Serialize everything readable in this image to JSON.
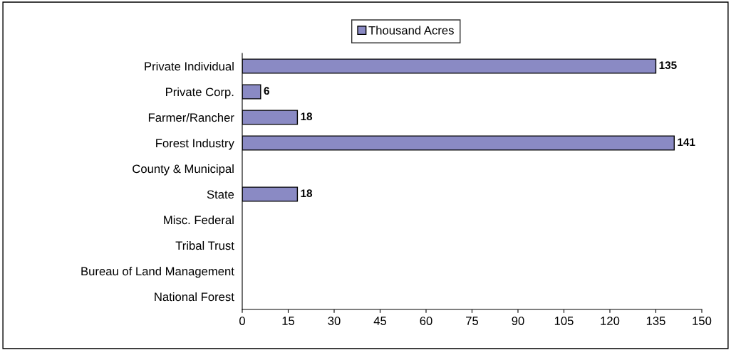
{
  "chart_data": {
    "type": "bar",
    "orientation": "horizontal",
    "categories": [
      "Private Individual",
      "Private Corp.",
      "Farmer/Rancher",
      "Forest Industry",
      "County & Municipal",
      "State",
      "Misc. Federal",
      "Tribal Trust",
      "Bureau of Land Management",
      "National Forest"
    ],
    "series": [
      {
        "name": "Thousand Acres",
        "color": "#8a8ac4",
        "values": [
          135,
          6,
          18,
          141,
          null,
          18,
          null,
          null,
          null,
          null
        ]
      }
    ],
    "xlim": [
      0,
      150
    ],
    "xticks": [
      0,
      15,
      30,
      45,
      60,
      75,
      90,
      105,
      120,
      135,
      150
    ],
    "data_labels": true,
    "grid": false,
    "legend": "top"
  }
}
